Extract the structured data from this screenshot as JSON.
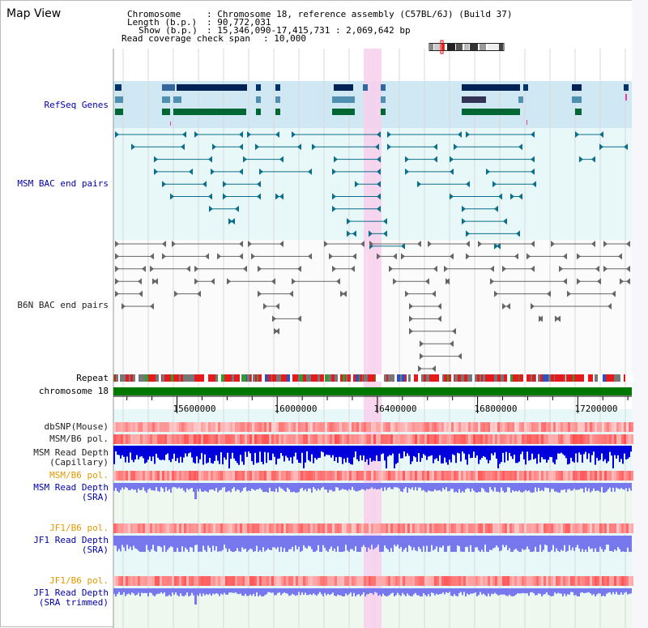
{
  "title": "Map View",
  "header": {
    "chromosome_key": "Chromosome",
    "chromosome_val": ": Chromosome 18, reference assembly (C57BL/6J) (Build 37)",
    "length_key": "Length (b.p.)",
    "length_val": ": 90,772,031",
    "show_key": "Show (b.p.)",
    "show_val": ": 15,346,090-17,415,731 : 2,069,642 bp",
    "coverage_key": "Read coverage check span",
    "coverage_val": ": 10,000"
  },
  "tracks": {
    "refseq": "RefSeq Genes",
    "msm_bac": "MSM BAC end pairs",
    "b6n_bac": "B6N BAC end pairs",
    "repeat": "Repeat",
    "chromosome": "chromosome 18",
    "dbsnp": "dbSNP(Mouse)",
    "msm_b6_pol_1": "MSM/B6 pol.",
    "msm_depth_cap_1": "MSM Read Depth",
    "msm_depth_cap_2": "(Capillary)",
    "msm_b6_pol_2": "MSM/B6 pol.",
    "msm_depth_sra_1": "MSM Read Depth",
    "msm_depth_sra_2": "(SRA)",
    "jf1_b6_pol_1": "JF1/B6 pol.",
    "jf1_depth_sra_1": "JF1 Read Depth",
    "jf1_depth_sra_2": "(SRA)",
    "jf1_b6_pol_2": "JF1/B6 pol.",
    "jf1_depth_trim_1": "JF1 Read Depth",
    "jf1_depth_trim_2": "(SRA trimmed)"
  },
  "axis": {
    "ticks": [
      15600000,
      16000000,
      16400000,
      16800000,
      17200000
    ],
    "tick_labels": [
      "15600000",
      "16000000",
      "16400000",
      "16800000",
      "17200000"
    ],
    "start": 15346090,
    "end": 17415731
  },
  "colors": {
    "refseq_bg": "#d0e8f4",
    "bac_bg": "#e8f8f8",
    "highlight": "#f8d0ec",
    "chromosome": "#007700",
    "depth_blue": "#0000dd",
    "depth_light": "#7777ee",
    "pol_red": "#ee2222",
    "label_blue": "#0000aa",
    "label_orange": "#e39a00"
  }
}
